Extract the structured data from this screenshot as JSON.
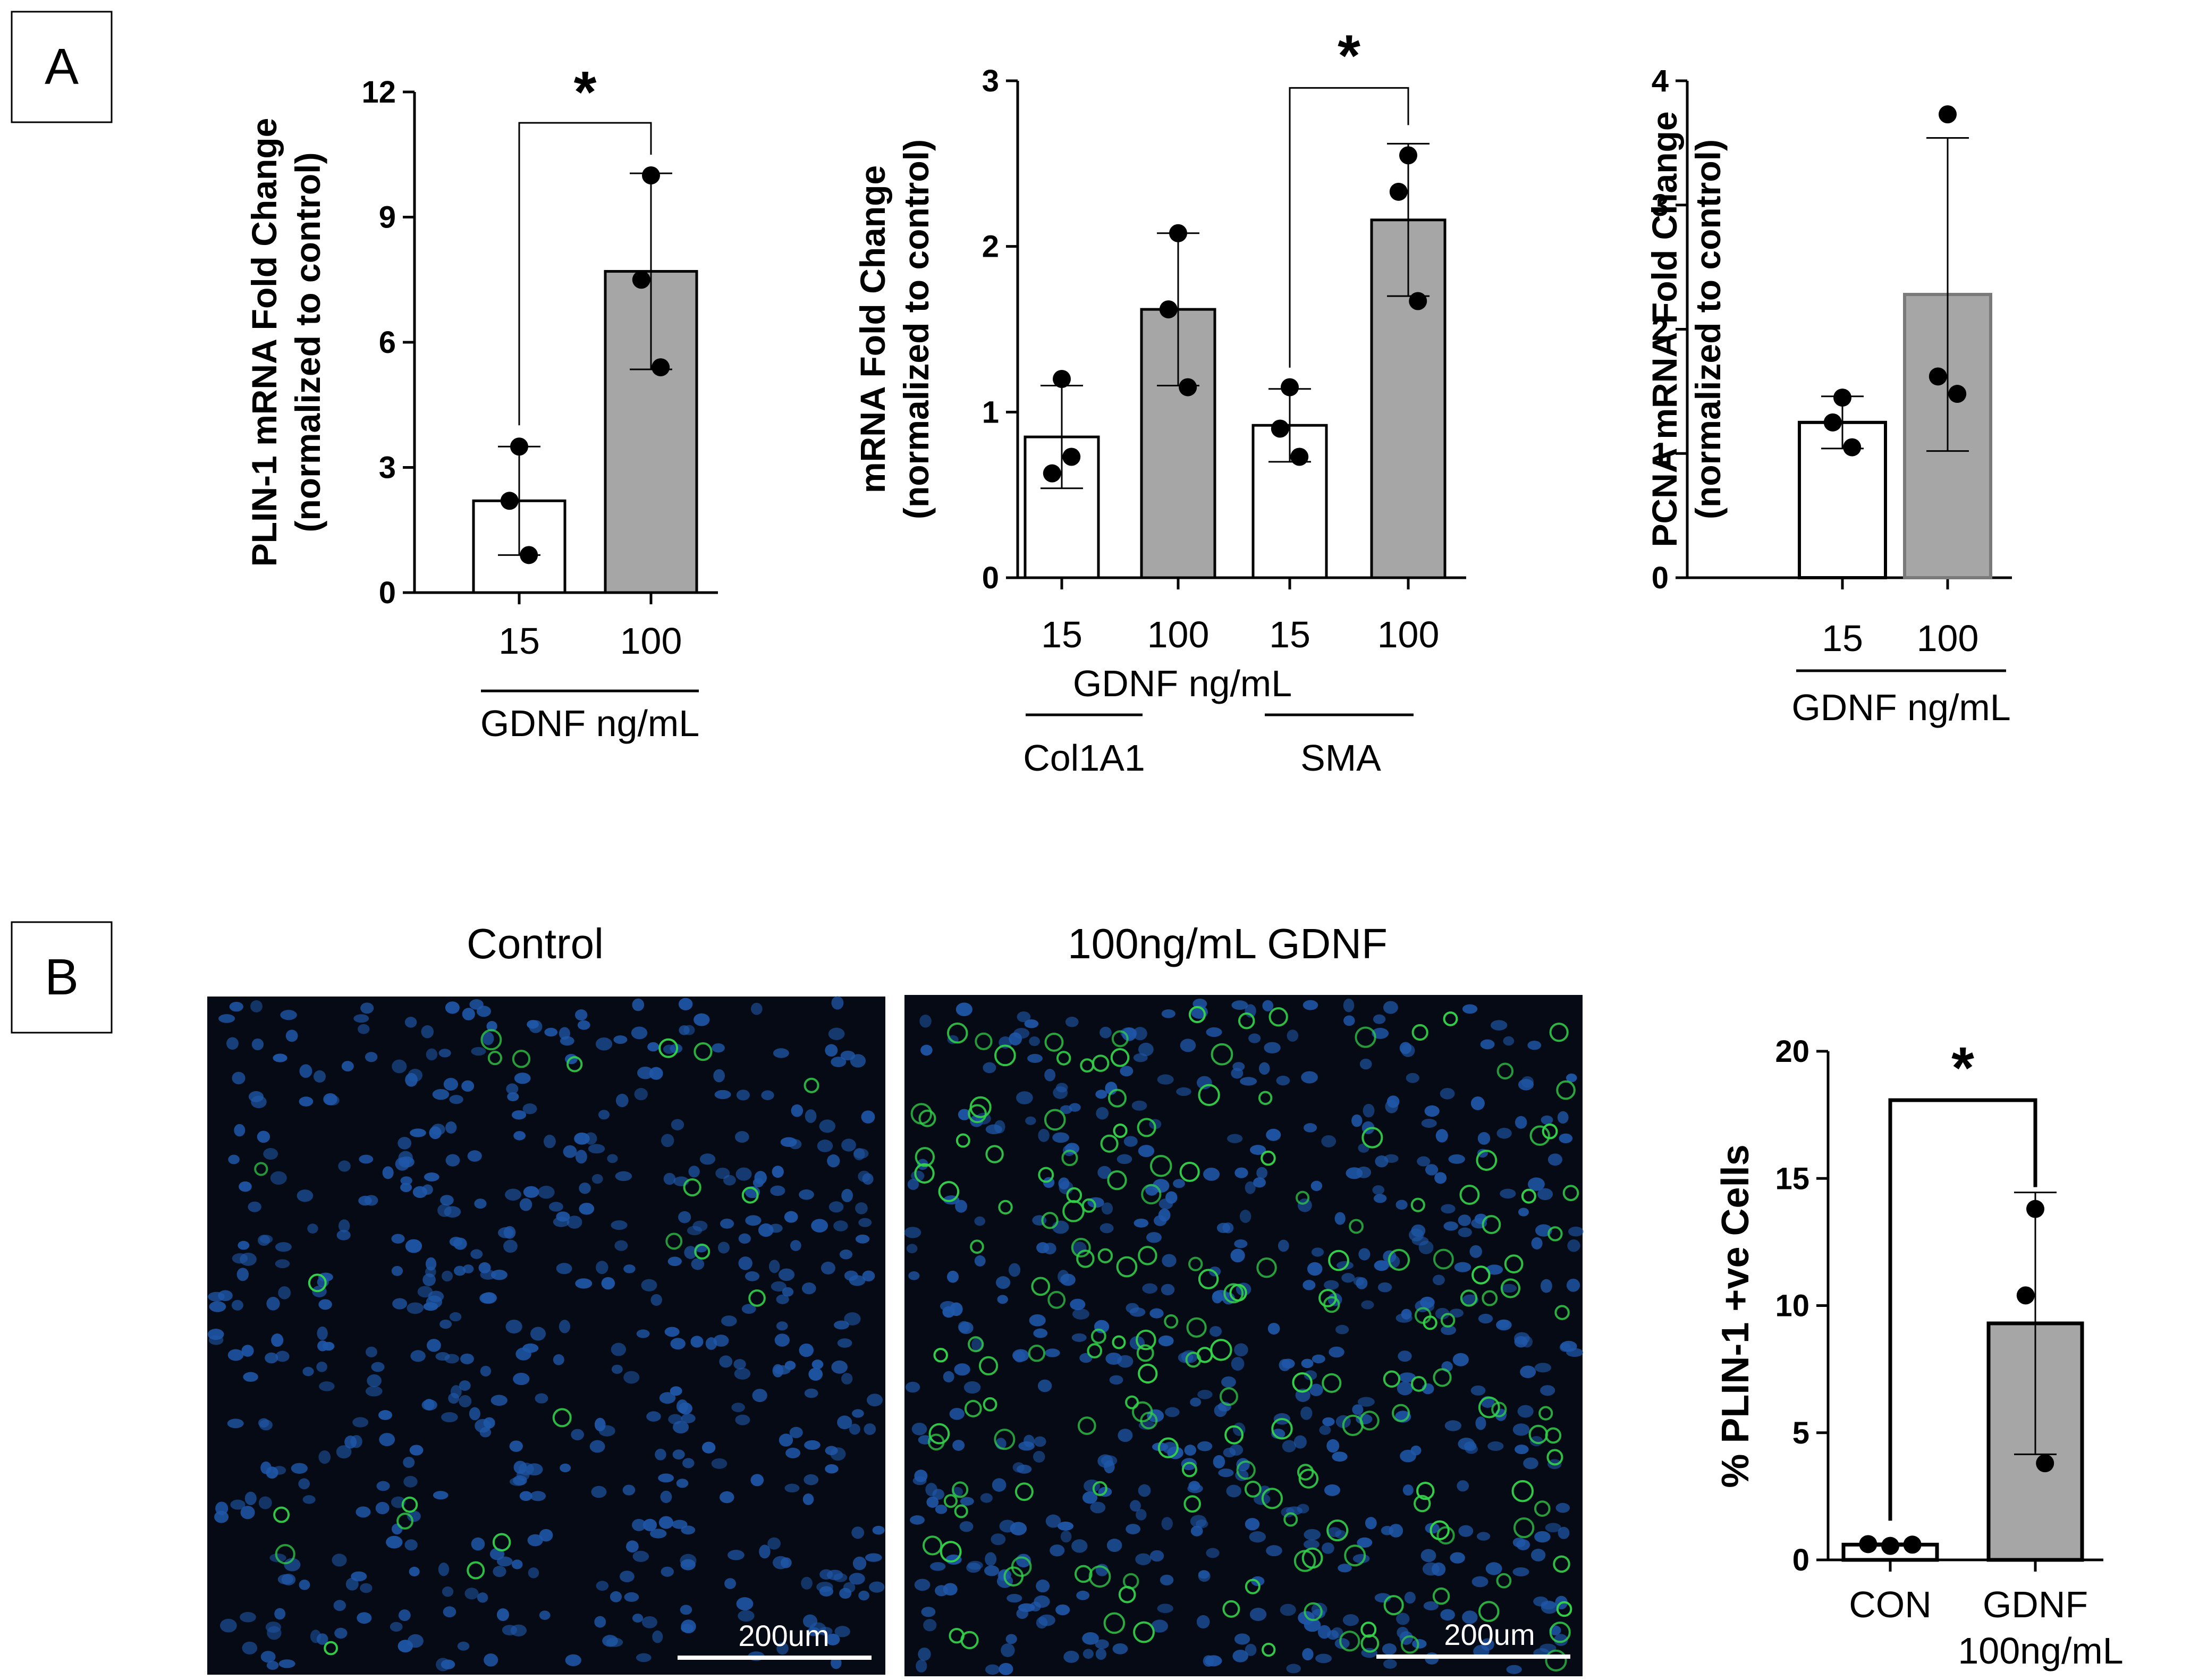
{
  "panels": {
    "a_label": "A",
    "b_label": "B"
  },
  "colors": {
    "white_bar": "#ffffff",
    "gray_bar": "#a6a6a6",
    "axis": "#000000",
    "nuclei": "#1f57a8",
    "plin_stain": "#33d24a"
  },
  "chart_data": [
    {
      "id": "plin1",
      "type": "bar",
      "ylabel_line1": "PLIN-1 mRNA Fold Change",
      "ylabel_line2": "(normalized to control)",
      "ylim": [
        0,
        12
      ],
      "yticks": [
        0,
        3,
        6,
        9,
        12
      ],
      "categories": [
        "15",
        "100"
      ],
      "values": [
        2.2,
        7.7
      ],
      "errors": [
        1.3,
        2.35
      ],
      "points": [
        [
          3.5,
          2.2,
          0.9
        ],
        [
          10.0,
          7.5,
          5.4
        ]
      ],
      "bar_colors": [
        "#ffffff",
        "#a6a6a6"
      ],
      "group_label": "GDNF ng/mL",
      "significance": [
        {
          "from": 0,
          "to": 1,
          "label": "*"
        }
      ]
    },
    {
      "id": "col_sma",
      "type": "bar",
      "ylabel_line1": "mRNA Fold Change",
      "ylabel_line2": "(normalized to control)",
      "ylim": [
        0,
        3
      ],
      "yticks": [
        0,
        1,
        2,
        3
      ],
      "categories": [
        "15",
        "100",
        "15",
        "100"
      ],
      "values": [
        0.85,
        1.62,
        0.92,
        2.16
      ],
      "errors": [
        0.31,
        0.46,
        0.22,
        0.46
      ],
      "points": [
        [
          1.2,
          0.63,
          0.73
        ],
        [
          2.08,
          1.62,
          1.15
        ],
        [
          1.15,
          0.9,
          0.73
        ],
        [
          2.55,
          2.33,
          1.67
        ]
      ],
      "bar_colors": [
        "#ffffff",
        "#a6a6a6",
        "#ffffff",
        "#a6a6a6"
      ],
      "group_label": "GDNF ng/mL",
      "subgroups": [
        "Col1A1",
        "SMA"
      ],
      "significance": [
        {
          "from": 2,
          "to": 3,
          "label": "*"
        }
      ]
    },
    {
      "id": "pcna",
      "type": "bar",
      "ylabel_line1": "PCNA mRNA Fold Change",
      "ylabel_line2": "(normalized to control)",
      "ylim": [
        0,
        4
      ],
      "yticks": [
        0,
        1,
        2,
        3,
        4
      ],
      "categories": [
        "15",
        "100"
      ],
      "values": [
        1.25,
        2.28
      ],
      "errors": [
        0.21,
        1.26
      ],
      "points": [
        [
          1.45,
          1.25,
          1.05
        ],
        [
          3.73,
          1.62,
          1.48
        ]
      ],
      "bar_colors": [
        "#ffffff",
        "#a6a6a6"
      ],
      "group_label": "GDNF ng/mL",
      "significance": []
    },
    {
      "id": "plin_pct",
      "type": "bar",
      "ylabel_line1": "% PLIN-1 +ve Cells",
      "ylim": [
        0,
        20
      ],
      "yticks": [
        0,
        5,
        10,
        15,
        20
      ],
      "categories": [
        "CON",
        "GDNF"
      ],
      "category_sublabels": [
        "",
        "100ng/mL"
      ],
      "values": [
        0.6,
        9.3
      ],
      "errors": [
        0.05,
        5.15
      ],
      "points": [
        [
          0.55,
          0.62,
          0.6
        ],
        [
          13.8,
          10.4,
          3.8
        ]
      ],
      "bar_colors": [
        "#ffffff",
        "#a6a6a6"
      ],
      "significance": [
        {
          "from": 0,
          "to": 1,
          "label": "*"
        }
      ]
    }
  ],
  "images": {
    "control_title": "Control",
    "gdnf_title": "100ng/mL GDNF",
    "scale_bar_label": "200um"
  }
}
